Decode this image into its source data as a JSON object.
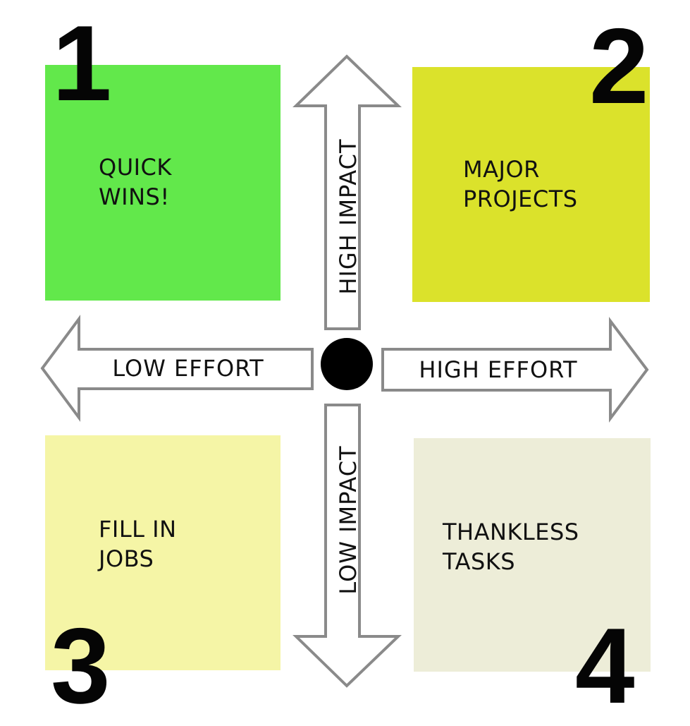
{
  "quadrants": [
    {
      "number": "1",
      "label": "QUICK\nWINS!",
      "color": "#62e84b"
    },
    {
      "number": "2",
      "label": "MAJOR\nPROJECTS",
      "color": "#dbe22b"
    },
    {
      "number": "3",
      "label": "FILL IN\nJOBS",
      "color": "#f5f5a6"
    },
    {
      "number": "4",
      "label": "THANKLESS\nTASKS",
      "color": "#ededd8"
    }
  ],
  "axes": {
    "high_impact": "HIGH IMPACT",
    "low_impact": "LOW IMPACT",
    "low_effort": "LOW EFFORT",
    "high_effort": "HIGH EFFORT"
  },
  "colors": {
    "arrow_fill": "#ffffff",
    "arrow_stroke": "#8a8a8a",
    "center_dot": "#000000",
    "number_text": "#050505"
  }
}
